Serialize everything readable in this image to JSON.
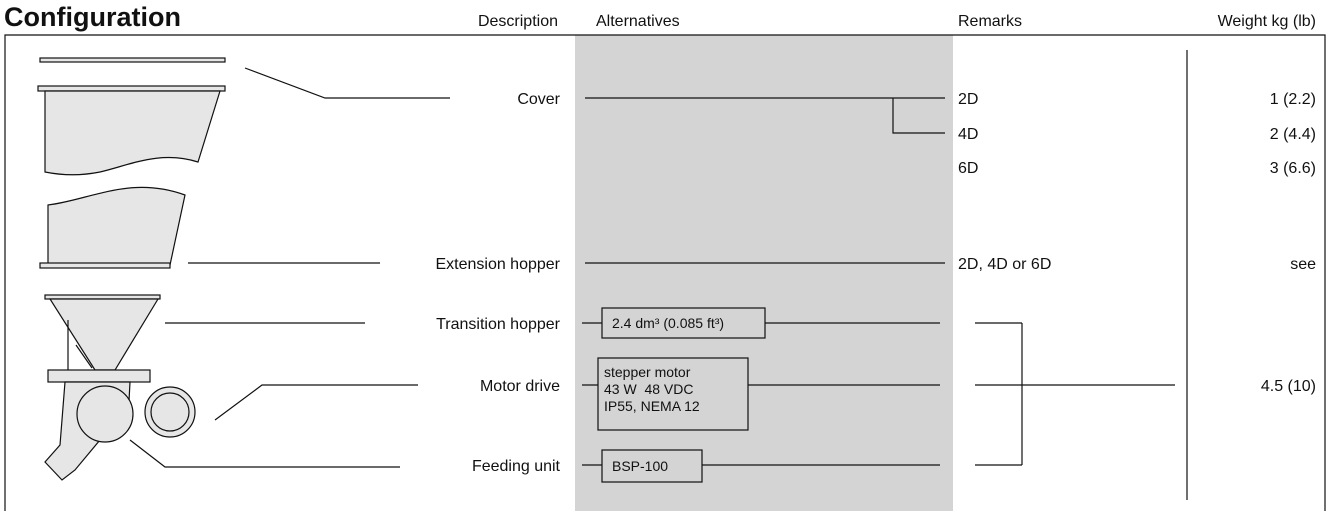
{
  "header": {
    "title": "Configuration",
    "columns": [
      "Description",
      "Alternatives",
      "Remarks",
      "Weight kg (lb)"
    ]
  },
  "rows": [
    {
      "description": "Cover",
      "remarks": [
        "2D",
        "4D",
        "6D"
      ],
      "weights": [
        "1 (2.2)",
        "2 (4.4)",
        "3 (6.6)"
      ]
    },
    {
      "description": "Extension hopper",
      "remarks": [
        "2D, 4D or 6D"
      ],
      "weights": [
        "see"
      ]
    },
    {
      "description": "Transition hopper",
      "alternatives": [
        "2.4 dm³ (0.085 ft³)"
      ]
    },
    {
      "description": "Motor drive",
      "alternatives": [
        "stepper motor",
        "43 W  48 VDC",
        "IP55, NEMA 12"
      ]
    },
    {
      "description": "Feeding unit",
      "alternatives": [
        "BSP-100"
      ]
    }
  ],
  "weight_group": "4.5 (10)"
}
